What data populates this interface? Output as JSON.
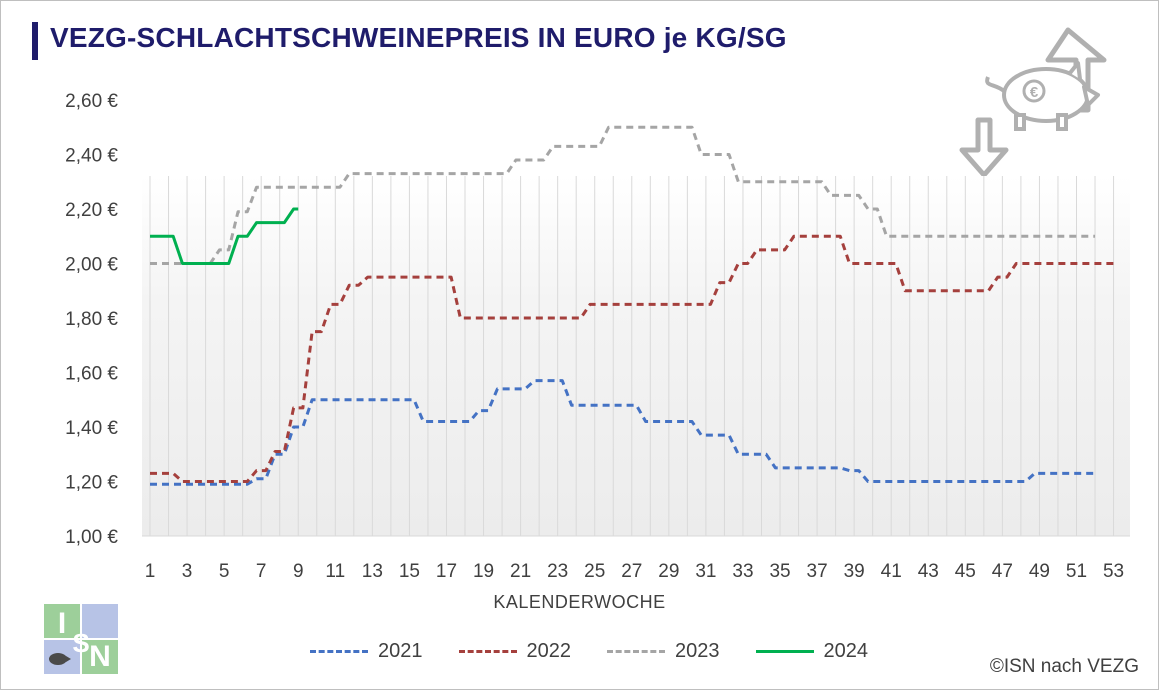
{
  "title": "VEZG-SCHLACHTSCHWEINEPREIS IN EURO je KG/SG",
  "copyright": "©ISN nach VEZG",
  "logo_text": "ISN",
  "icon": "pig-euro-price-up-down-icon",
  "chart_data": {
    "type": "line",
    "title": "VEZG-SCHLACHTSCHWEINEPREIS IN EURO je KG/SG",
    "xlabel": "KALENDERWOCHE",
    "ylabel": "",
    "xlim": [
      1,
      53
    ],
    "ylim": [
      1.0,
      2.6
    ],
    "x_ticks": [
      1,
      3,
      5,
      7,
      9,
      11,
      13,
      15,
      17,
      19,
      21,
      23,
      25,
      27,
      29,
      31,
      33,
      35,
      37,
      39,
      41,
      43,
      45,
      47,
      49,
      51,
      53
    ],
    "y_ticks": [
      "1,00 €",
      "1,20 €",
      "1,40 €",
      "1,60 €",
      "1,80 €",
      "2,00 €",
      "2,20 €",
      "2,40 €",
      "2,60 €"
    ],
    "grid": "vertical lines per week",
    "legend_position": "bottom",
    "series": [
      {
        "name": "2021",
        "color": "#4472c4",
        "dash": "dashed",
        "x": [
          1,
          2,
          3,
          4,
          5,
          6,
          7,
          8,
          9,
          10,
          11,
          12,
          13,
          14,
          15,
          16,
          17,
          18,
          19,
          20,
          21,
          22,
          23,
          24,
          25,
          26,
          27,
          28,
          29,
          30,
          31,
          32,
          33,
          34,
          35,
          36,
          37,
          38,
          39,
          40,
          41,
          42,
          43,
          44,
          45,
          46,
          47,
          48,
          49,
          50,
          51,
          52
        ],
        "values": [
          1.19,
          1.19,
          1.19,
          1.19,
          1.19,
          1.19,
          1.21,
          1.3,
          1.4,
          1.5,
          1.5,
          1.5,
          1.5,
          1.5,
          1.5,
          1.42,
          1.42,
          1.42,
          1.46,
          1.54,
          1.54,
          1.57,
          1.57,
          1.48,
          1.48,
          1.48,
          1.48,
          1.42,
          1.42,
          1.42,
          1.37,
          1.37,
          1.3,
          1.3,
          1.25,
          1.25,
          1.25,
          1.25,
          1.24,
          1.2,
          1.2,
          1.2,
          1.2,
          1.2,
          1.2,
          1.2,
          1.2,
          1.2,
          1.23,
          1.23,
          1.23,
          1.23
        ]
      },
      {
        "name": "2022",
        "color": "#a5403d",
        "dash": "dashed",
        "x": [
          1,
          2,
          3,
          4,
          5,
          6,
          7,
          8,
          9,
          10,
          11,
          12,
          13,
          14,
          15,
          16,
          17,
          18,
          19,
          20,
          21,
          22,
          23,
          24,
          25,
          26,
          27,
          28,
          29,
          30,
          31,
          32,
          33,
          34,
          35,
          36,
          37,
          38,
          39,
          40,
          41,
          42,
          43,
          44,
          45,
          46,
          47,
          48,
          49,
          50,
          51,
          52,
          53
        ],
        "values": [
          1.23,
          1.23,
          1.2,
          1.2,
          1.2,
          1.2,
          1.24,
          1.31,
          1.47,
          1.75,
          1.85,
          1.92,
          1.95,
          1.95,
          1.95,
          1.95,
          1.95,
          1.8,
          1.8,
          1.8,
          1.8,
          1.8,
          1.8,
          1.8,
          1.85,
          1.85,
          1.85,
          1.85,
          1.85,
          1.85,
          1.85,
          1.93,
          2.0,
          2.05,
          2.05,
          2.1,
          2.1,
          2.1,
          2.0,
          2.0,
          2.0,
          1.9,
          1.9,
          1.9,
          1.9,
          1.9,
          1.95,
          2.0,
          2.0,
          2.0,
          2.0,
          2.0,
          2.0
        ]
      },
      {
        "name": "2023",
        "color": "#a5a5a5",
        "dash": "dashed",
        "x": [
          1,
          2,
          3,
          4,
          5,
          6,
          7,
          8,
          9,
          10,
          11,
          12,
          13,
          14,
          15,
          16,
          17,
          18,
          19,
          20,
          21,
          22,
          23,
          24,
          25,
          26,
          27,
          28,
          29,
          30,
          31,
          32,
          33,
          34,
          35,
          36,
          37,
          38,
          39,
          40,
          41,
          42,
          43,
          44,
          45,
          46,
          47,
          48,
          49,
          50,
          51,
          52
        ],
        "values": [
          2.0,
          2.0,
          2.0,
          2.0,
          2.05,
          2.19,
          2.28,
          2.28,
          2.28,
          2.28,
          2.28,
          2.33,
          2.33,
          2.33,
          2.33,
          2.33,
          2.33,
          2.33,
          2.33,
          2.33,
          2.38,
          2.38,
          2.43,
          2.43,
          2.43,
          2.5,
          2.5,
          2.5,
          2.5,
          2.5,
          2.4,
          2.4,
          2.3,
          2.3,
          2.3,
          2.3,
          2.3,
          2.25,
          2.25,
          2.2,
          2.1,
          2.1,
          2.1,
          2.1,
          2.1,
          2.1,
          2.1,
          2.1,
          2.1,
          2.1,
          2.1,
          2.1
        ]
      },
      {
        "name": "2024",
        "color": "#00b050",
        "dash": "solid",
        "x": [
          1,
          2,
          3,
          4,
          5,
          6,
          7,
          8,
          9
        ],
        "values": [
          2.1,
          2.1,
          2.0,
          2.0,
          2.0,
          2.1,
          2.15,
          2.15,
          2.2
        ]
      }
    ]
  }
}
